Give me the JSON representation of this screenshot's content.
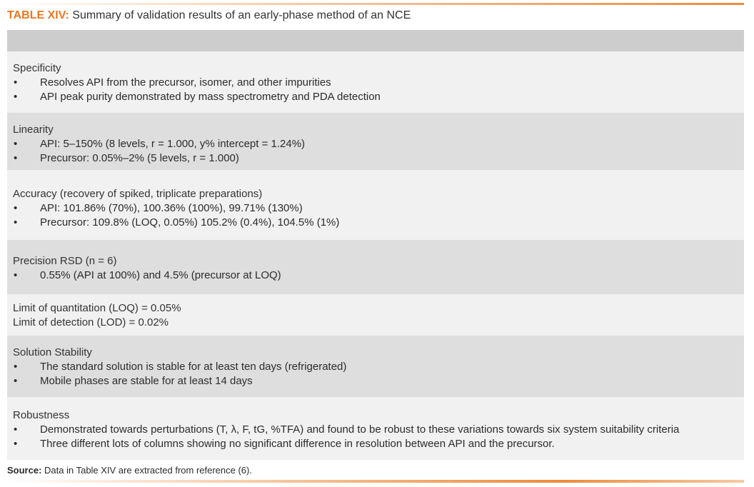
{
  "caption": {
    "label": "TABLE XIV:",
    "text": " Summary of validation results of an early-phase method of an NCE"
  },
  "rows": [
    {
      "title": "Specificity",
      "bullets": [
        "Resolves API from the precursor, isomer, and other impurities",
        "API peak purity demonstrated by mass spectrometry and PDA detection"
      ]
    },
    {
      "title": "Linearity",
      "bullets": [
        "API: 5–150% (8 levels, r  = 1.000, y% intercept = 1.24%)",
        "Precursor: 0.05%–2% (5 levels, r = 1.000)"
      ]
    },
    {
      "title": "Accuracy (recovery of spiked, triplicate preparations)",
      "bullets": [
        "API: 101.86% (70%), 100.36% (100%), 99.71% (130%)",
        "Precursor: 109.8% (LOQ, 0.05%) 105.2% (0.4%), 104.5% (1%)"
      ]
    },
    {
      "title": "Precision RSD (n = 6)",
      "bullets": [
        "0.55% (API at 100%) and 4.5% (precursor at LOQ)"
      ]
    },
    {
      "title": "Limit of quantitation (LOQ) = 0.05%",
      "title2": "Limit of detection (LOD) = 0.02%",
      "bullets": []
    },
    {
      "title": "Solution Stability",
      "bullets": [
        "The standard solution is stable for at least ten days (refrigerated)",
        "Mobile phases are stable for at least 14 days"
      ]
    },
    {
      "title": "Robustness",
      "bullets": [
        "Demonstrated towards perturbations (T, λ, F, tG, %TFA) and found to be robust to these variations towards six system suitability criteria",
        "Three different lots of columns showing no significant difference in resolution between API and the precursor."
      ]
    }
  ],
  "source": {
    "label": "Source:",
    "text": " Data in Table XIV are extracted from reference (6)."
  }
}
